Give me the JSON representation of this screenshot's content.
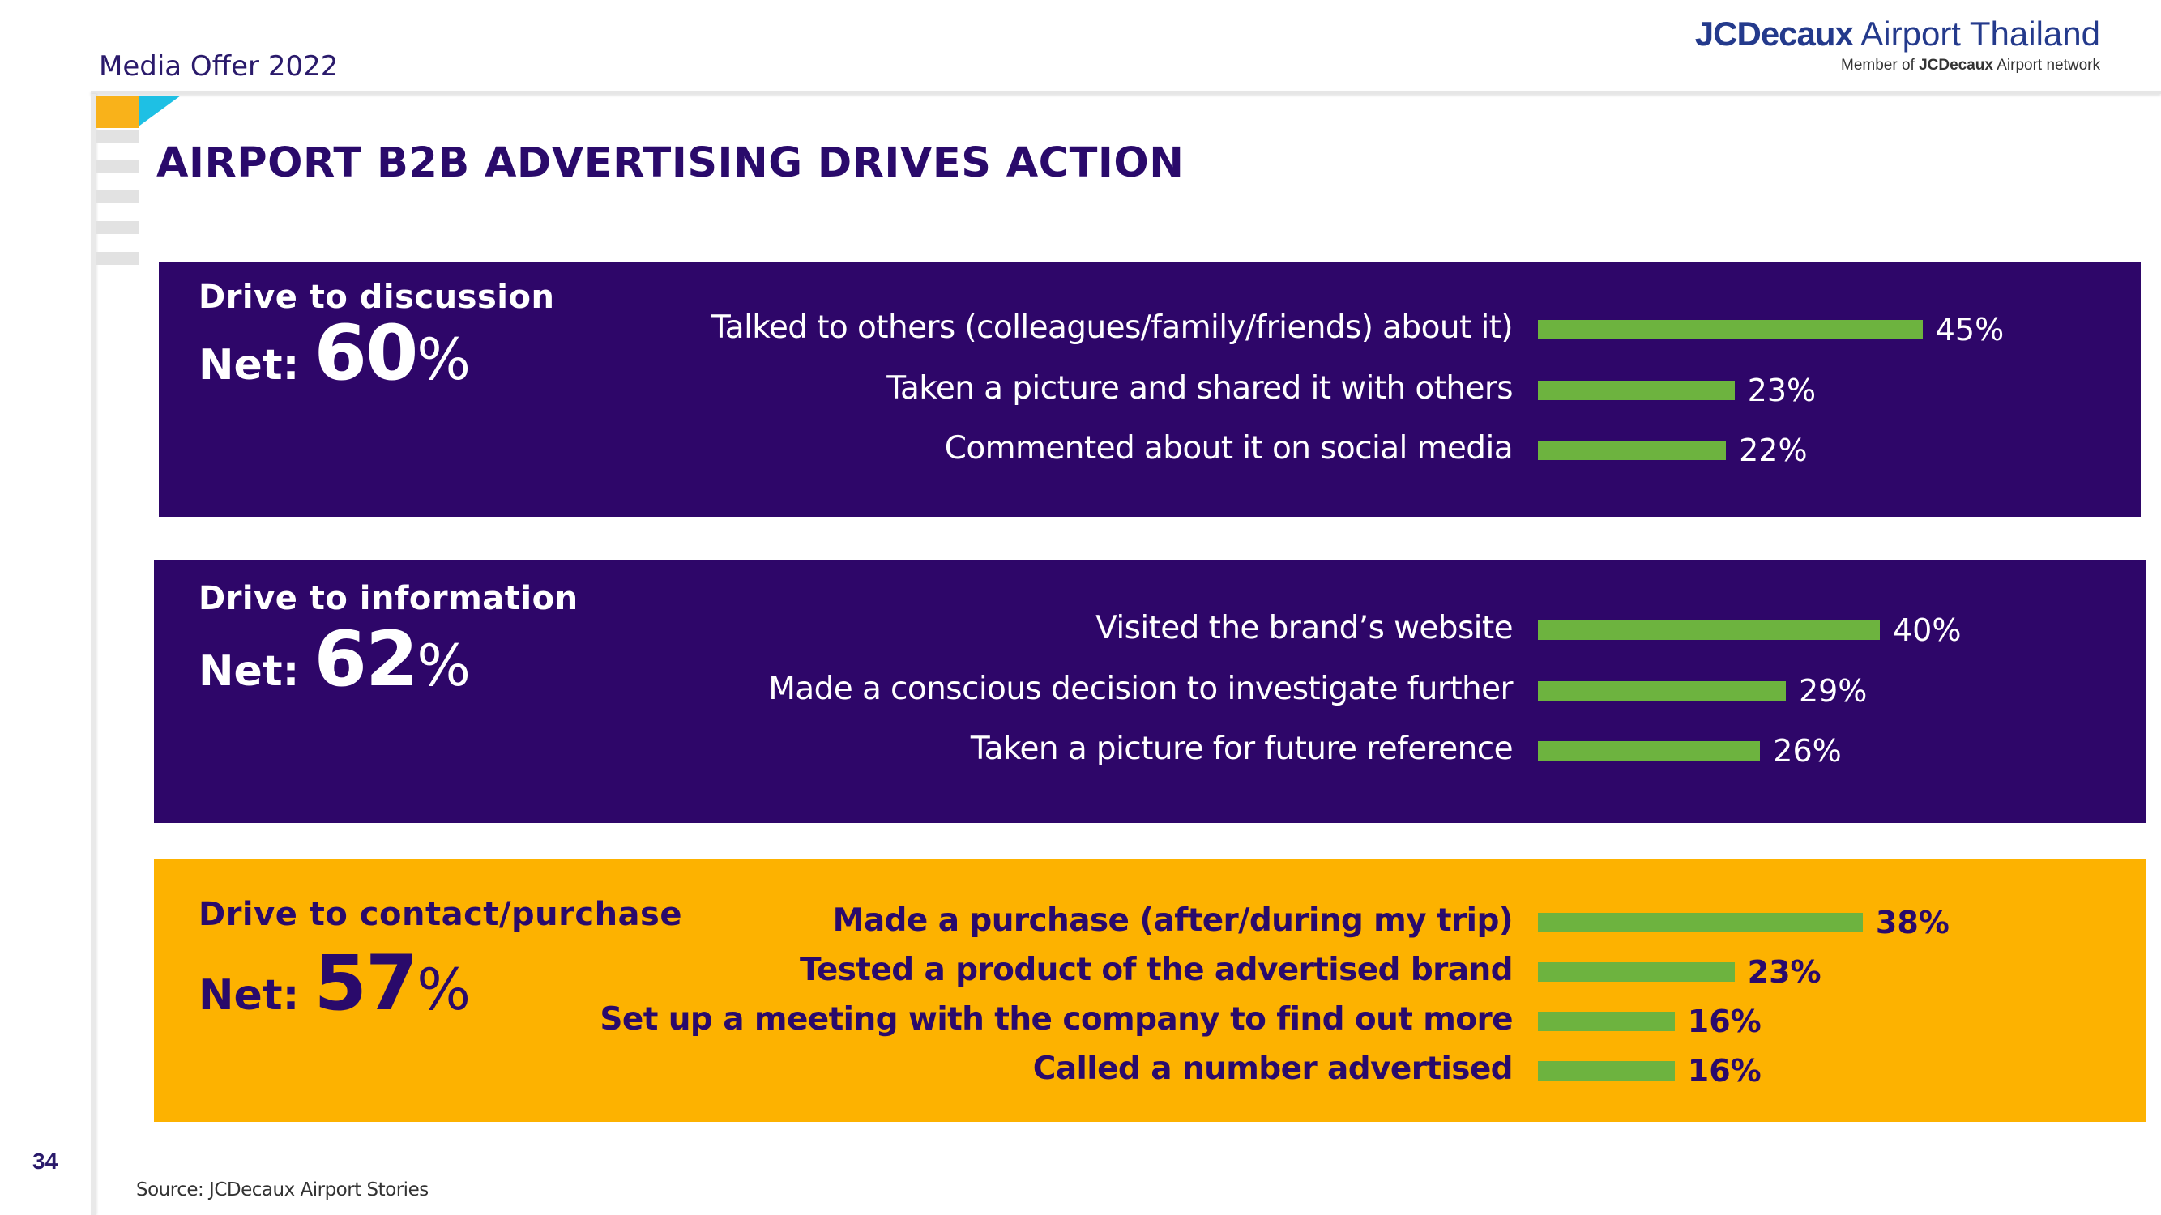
{
  "header": {
    "left_text": "Media Offer 2022",
    "brand_bold": "JCDecaux",
    "brand_light": "Airport Thailand",
    "brand_sub_prefix": "Member of",
    "brand_sub_bold": "JCDecaux",
    "brand_sub_suffix": "Airport network"
  },
  "title": "AIRPORT B2B ADVERTISING DRIVES ACTION",
  "colors": {
    "panel_purple": "#2e0669",
    "panel_yellow": "#fdb200",
    "bar_green": "#6db33f",
    "text_on_purple": "#ffffff",
    "text_on_yellow": "#2a0a6b"
  },
  "chart_data": [
    {
      "type": "bar",
      "orientation": "horizontal",
      "title": "Drive to discussion",
      "net_label": "Net:",
      "net_value": "60",
      "net_unit": "%",
      "categories": [
        "Talked to others (colleagues/family/friends) about it)",
        "Taken a picture and shared it with others",
        "Commented about it on social media"
      ],
      "values": [
        45,
        23,
        22
      ],
      "value_labels": [
        "45%",
        "23%",
        "22%"
      ]
    },
    {
      "type": "bar",
      "orientation": "horizontal",
      "title": "Drive to information",
      "net_label": "Net:",
      "net_value": "62",
      "net_unit": "%",
      "categories": [
        "Visited the brand’s website",
        "Made a conscious decision to investigate further",
        "Taken a picture for future reference"
      ],
      "values": [
        40,
        29,
        26
      ],
      "value_labels": [
        "40%",
        "29%",
        "26%"
      ]
    },
    {
      "type": "bar",
      "orientation": "horizontal",
      "title": "Drive to contact/purchase",
      "net_label": "Net:",
      "net_value": "57",
      "net_unit": "%",
      "categories": [
        "Made a purchase (after/during my trip)",
        "Tested a product of the advertised brand",
        "Set up a meeting with the company to find out more",
        "Called a number advertised"
      ],
      "values": [
        38,
        23,
        16,
        16
      ],
      "value_labels": [
        "38%",
        "23%",
        "16%",
        "16%"
      ]
    }
  ],
  "footer": {
    "page_number": "34",
    "source": "Source: JCDecaux Airport Stories"
  }
}
